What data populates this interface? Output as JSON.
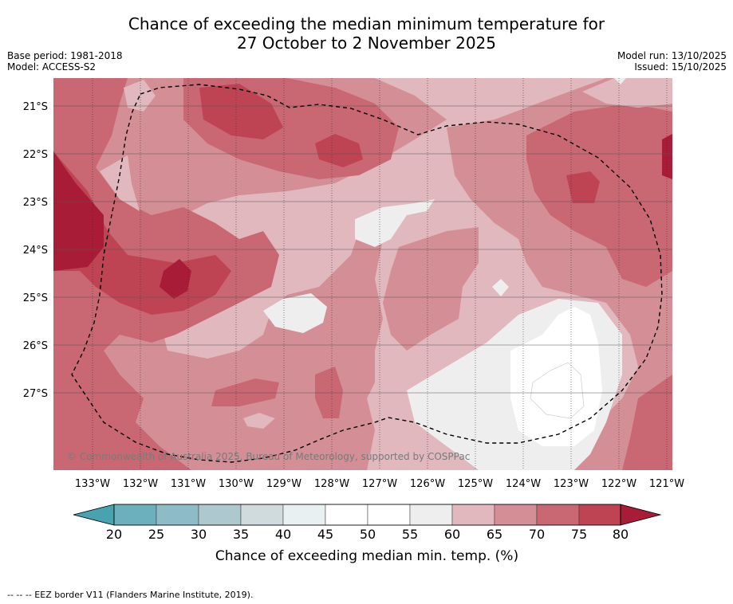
{
  "title_line1": "Chance of exceeding the median minimum temperature for",
  "title_line2": "27 October to 2 November 2025",
  "base_period": "Base period: 1981-2018",
  "model": "Model: ACCESS-S2",
  "model_run": "Model run: 13/10/2025",
  "issued": "Issued: 15/10/2025",
  "copyright": "© Commonwealth of Australia 2025, Bureau of Meteorology, supported by COSPPac",
  "footnote": "--  --  -- EEZ border V11 (Flanders Marine Institute, 2019).",
  "lat_labels": [
    "21°S",
    "22°S",
    "23°S",
    "24°S",
    "25°S",
    "26°S",
    "27°S"
  ],
  "lon_labels": [
    "133°W",
    "132°W",
    "131°W",
    "130°W",
    "129°W",
    "128°W",
    "127°W",
    "126°W",
    "125°W",
    "124°W",
    "123°W",
    "122°W",
    "121°W"
  ],
  "colorbar": {
    "title": "Chance of exceeding median min. temp. (%)",
    "labels": [
      "20",
      "25",
      "30",
      "35",
      "40",
      "45",
      "50",
      "55",
      "60",
      "65",
      "70",
      "75",
      "80"
    ],
    "colors": [
      "#47a3b0",
      "#6cb0bd",
      "#8dbcc6",
      "#adc9cf",
      "#d0dbdd",
      "#e9f0f2",
      "#ffffff",
      "#ffffff",
      "#eeeeee",
      "#e0b8be",
      "#d48e96",
      "#c96772",
      "#be4453",
      "#a81c37"
    ]
  }
}
